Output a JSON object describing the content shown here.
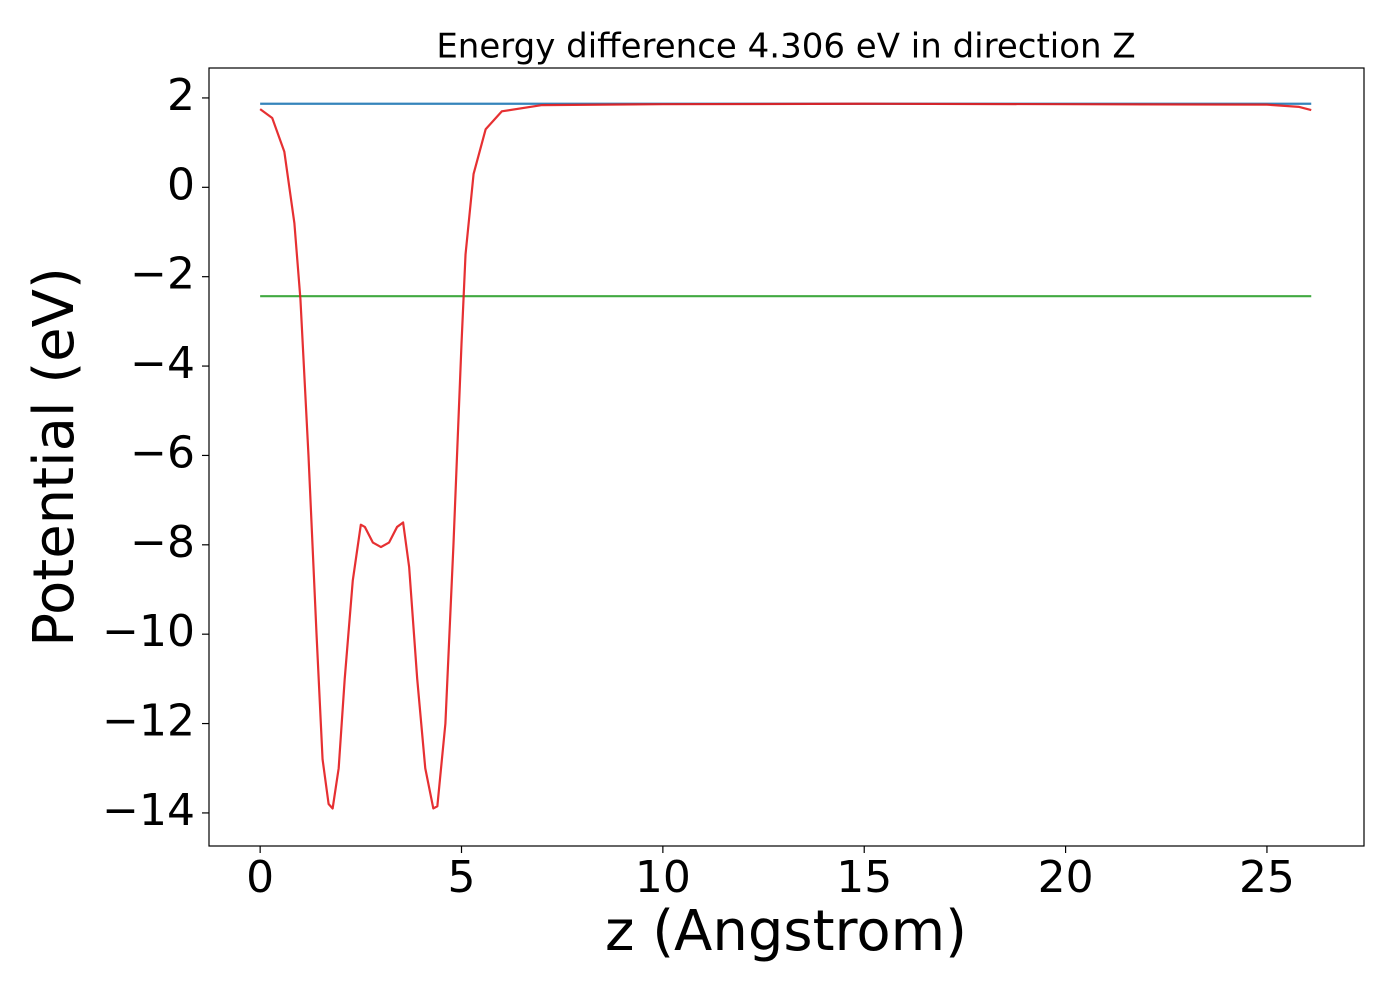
{
  "chart_data": {
    "type": "line",
    "title": "Energy difference 4.306 eV in direction Z",
    "xlabel": "z (Angstrom)",
    "ylabel": "Potential (eV)",
    "xlim": [
      -1.27,
      27.41
    ],
    "ylim": [
      -14.74,
      2.67
    ],
    "xticks": [
      0,
      5,
      10,
      15,
      20,
      25
    ],
    "yticks": [
      {
        "value": -14,
        "label": "−14"
      },
      {
        "value": -12,
        "label": "−12"
      },
      {
        "value": -10,
        "label": "−10"
      },
      {
        "value": -8,
        "label": "−8"
      },
      {
        "value": -6,
        "label": "−6"
      },
      {
        "value": -4,
        "label": "−4"
      },
      {
        "value": -2,
        "label": "−2"
      },
      0,
      2
    ],
    "series": [
      {
        "color": "#1f77b4",
        "x": [
          0,
          26.1
        ],
        "values": [
          1.87,
          1.87
        ]
      },
      {
        "color": "#2ca02c",
        "x": [
          0,
          26.1
        ],
        "values": [
          -2.436,
          -2.436
        ]
      },
      {
        "color": "#e31a1c",
        "x": [
          0,
          0.3,
          0.6,
          0.85,
          1.0,
          1.2,
          1.4,
          1.55,
          1.7,
          1.8,
          1.95,
          2.1,
          2.3,
          2.5,
          2.6,
          2.8,
          3.0,
          3.2,
          3.4,
          3.55,
          3.7,
          3.9,
          4.1,
          4.3,
          4.4,
          4.6,
          4.8,
          5.0,
          5.1,
          5.3,
          5.6,
          6.0,
          7,
          10,
          15,
          20,
          25,
          25.8,
          26.1
        ],
        "values": [
          1.75,
          1.55,
          0.8,
          -0.8,
          -2.5,
          -6,
          -10,
          -12.8,
          -13.8,
          -13.9,
          -13,
          -11,
          -8.8,
          -7.55,
          -7.6,
          -7.95,
          -8.05,
          -7.95,
          -7.6,
          -7.5,
          -8.5,
          -11,
          -13,
          -13.9,
          -13.85,
          -12,
          -8,
          -3.5,
          -1.5,
          0.3,
          1.3,
          1.7,
          1.84,
          1.86,
          1.87,
          1.86,
          1.85,
          1.8,
          1.73
        ]
      }
    ]
  }
}
